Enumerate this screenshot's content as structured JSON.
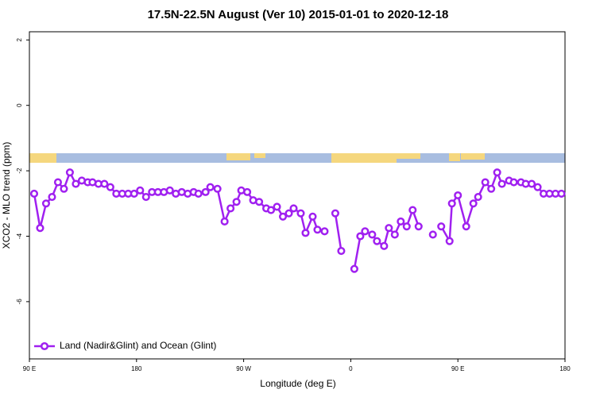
{
  "chart_data": {
    "type": "line",
    "title": "17.5N-22.5N August (Ver 10)   2015-01-01 to 2020-12-18",
    "xlabel": "Longitude (deg E)",
    "ylabel": "XCO2 - MLO trend (ppm)",
    "x": [
      94,
      99,
      104,
      109,
      114,
      119,
      124,
      129,
      134,
      139,
      143,
      148,
      153,
      158,
      163,
      168,
      173,
      178,
      183,
      188,
      193,
      198,
      203,
      208,
      213,
      218,
      223,
      228,
      232,
      238,
      242,
      248,
      254,
      259,
      264,
      268,
      273,
      278,
      283,
      289,
      293,
      298,
      303,
      308,
      312,
      318,
      322,
      328,
      332,
      338,
      343,
      347,
      352,
      357,
      363,
      368,
      372,
      378,
      382,
      388,
      392,
      397,
      402,
      407,
      412,
      417,
      423,
      429,
      432,
      436,
      443,
      445,
      450,
      457,
      463,
      467,
      473,
      478,
      483,
      487,
      493,
      497,
      503,
      507,
      512,
      517,
      522,
      527,
      532,
      537
    ],
    "series": [
      {
        "name": "Land (Nadir&Glint) and Ocean (Glint)",
        "color": "#a020f0",
        "values": [
          -2.7,
          -3.75,
          -3.0,
          -2.8,
          -2.35,
          -2.55,
          -2.05,
          -2.4,
          -2.3,
          -2.35,
          -2.35,
          -2.4,
          -2.4,
          -2.5,
          -2.7,
          -2.7,
          -2.7,
          -2.7,
          -2.6,
          -2.8,
          -2.65,
          -2.65,
          -2.65,
          -2.6,
          -2.7,
          -2.65,
          -2.7,
          -2.65,
          -2.7,
          -2.65,
          -2.5,
          -2.55,
          -3.55,
          -3.15,
          -2.95,
          -2.6,
          -2.65,
          -2.9,
          -2.95,
          -3.15,
          -3.2,
          -3.1,
          -3.4,
          -3.3,
          -3.15,
          -3.3,
          -3.9,
          -3.4,
          -3.8,
          -3.85,
          null,
          -3.3,
          -4.45,
          null,
          -5.0,
          -4.0,
          -3.85,
          -3.95,
          -4.15,
          -4.3,
          -3.75,
          -3.95,
          -3.55,
          -3.7,
          -3.2,
          -3.7,
          null,
          -3.95,
          null,
          -3.7,
          -4.15,
          -3.0,
          -2.75,
          -3.7,
          -3.0,
          -2.8,
          -2.35,
          -2.55,
          -2.05,
          -2.4,
          -2.3,
          -2.35,
          -2.35,
          -2.4,
          -2.4,
          -2.5,
          -2.7,
          -2.7,
          -2.7,
          -2.7
        ]
      }
    ],
    "xlim": [
      90,
      540
    ],
    "xticks": [
      {
        "value": 90,
        "label": "90 E"
      },
      180,
      {
        "value": 270,
        "label": "90 W"
      },
      {
        "value": 360,
        "label": "0"
      },
      {
        "value": 450,
        "label": "90 E"
      },
      {
        "value": 540,
        "label": "180"
      }
    ],
    "ylim": [
      -7.75,
      2.25
    ],
    "yticks": [
      2,
      0,
      -2,
      -4,
      -6
    ],
    "legend": "bottomleft"
  }
}
